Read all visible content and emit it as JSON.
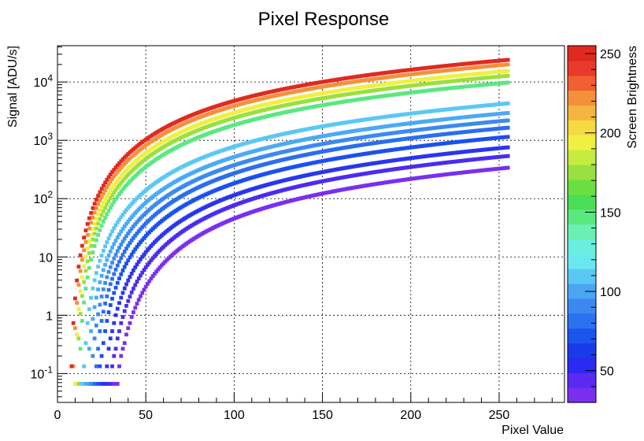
{
  "chart_data": {
    "type": "scatter",
    "title": "Pixel Response",
    "xlabel": "Pixel Value",
    "ylabel": "Signal [ADU/s]",
    "xlim": [
      0,
      287
    ],
    "ylim": [
      0.032,
      42000
    ],
    "yscale": "log",
    "grid": true,
    "x_ticks": [
      0,
      50,
      100,
      150,
      200,
      250
    ],
    "x_tick_labels": [
      "0",
      "50",
      "100",
      "150",
      "200",
      "250"
    ],
    "y_ticks": [
      0.1,
      1,
      10,
      100,
      1000,
      10000
    ],
    "colorbar": {
      "label": "Screen Brightness",
      "range": [
        30,
        255
      ],
      "ticks": [
        50,
        100,
        150,
        200,
        250
      ],
      "tick_labels": [
        "50",
        "100",
        "150",
        "200",
        "250"
      ],
      "palette": [
        "#7a2ff0",
        "#5a2af3",
        "#2a2af3",
        "#1a3ae9",
        "#1a55f0",
        "#2a72f0",
        "#3a88f0",
        "#4aa5f5",
        "#5ac8f5",
        "#6ae8f0",
        "#6aeedd",
        "#6af0b5",
        "#5ae880",
        "#4add55",
        "#6ae040",
        "#9ae040",
        "#c6ec40",
        "#f0f040",
        "#f5da40",
        "#f5b540",
        "#f5903a",
        "#f06030",
        "#e83a2a",
        "#e02a20"
      ]
    },
    "series": [
      {
        "brightness": 40,
        "x0": 30,
        "y255": 340,
        "color": "#7a2ff0"
      },
      {
        "brightness": 50,
        "x0": 27,
        "y255": 540,
        "color": "#4a2cf0"
      },
      {
        "brightness": 60,
        "x0": 24,
        "y255": 760,
        "color": "#2a35f0"
      },
      {
        "brightness": 70,
        "x0": 21,
        "y255": 1150,
        "color": "#1a50f0"
      },
      {
        "brightness": 80,
        "x0": 19,
        "y255": 1650,
        "color": "#2a6ef0"
      },
      {
        "brightness": 90,
        "x0": 17,
        "y255": 2200,
        "color": "#3a8af2"
      },
      {
        "brightness": 100,
        "x0": 15,
        "y255": 2950,
        "color": "#4aaaf5"
      },
      {
        "brightness": 110,
        "x0": 13,
        "y255": 4300,
        "color": "#5ac8f5"
      },
      {
        "brightness": 160,
        "x0": 11,
        "y255": 9800,
        "color": "#5ae880"
      },
      {
        "brightness": 180,
        "x0": 10,
        "y255": 12800,
        "color": "#9ae040"
      },
      {
        "brightness": 200,
        "x0": 9,
        "y255": 15500,
        "color": "#f0f040"
      },
      {
        "brightness": 220,
        "x0": 8,
        "y255": 20000,
        "color": "#f5903a"
      },
      {
        "brightness": 250,
        "x0": 7,
        "y255": 24000,
        "color": "#e02a20"
      }
    ]
  }
}
